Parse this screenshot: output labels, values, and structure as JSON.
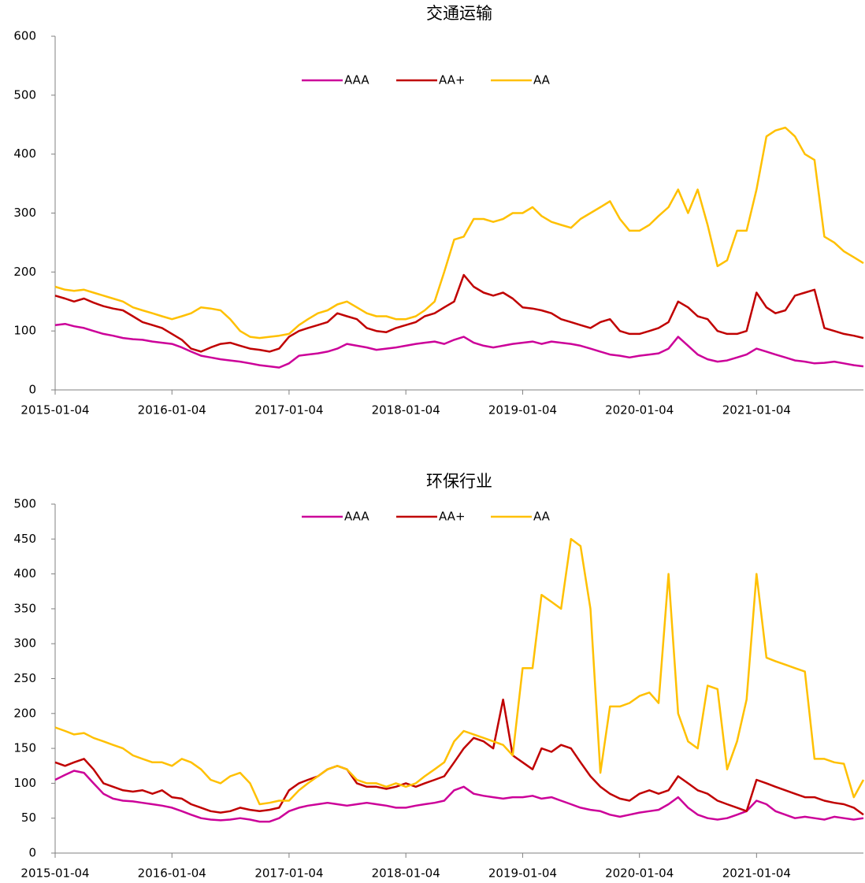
{
  "chart_data": [
    {
      "type": "line",
      "title": "交通运输",
      "x": [
        "2015-01-04",
        "2015-02-04",
        "2015-03-04",
        "2015-04-04",
        "2015-05-04",
        "2015-06-04",
        "2015-07-04",
        "2015-08-04",
        "2015-09-04",
        "2015-10-04",
        "2015-11-04",
        "2015-12-04",
        "2016-01-04",
        "2016-02-04",
        "2016-03-04",
        "2016-04-04",
        "2016-05-04",
        "2016-06-04",
        "2016-07-04",
        "2016-08-04",
        "2016-09-04",
        "2016-10-04",
        "2016-11-04",
        "2016-12-04",
        "2017-01-04",
        "2017-02-04",
        "2017-03-04",
        "2017-04-04",
        "2017-05-04",
        "2017-06-04",
        "2017-07-04",
        "2017-08-04",
        "2017-09-04",
        "2017-10-04",
        "2017-11-04",
        "2017-12-04",
        "2018-01-04",
        "2018-02-04",
        "2018-03-04",
        "2018-04-04",
        "2018-05-04",
        "2018-06-04",
        "2018-07-04",
        "2018-08-04",
        "2018-09-04",
        "2018-10-04",
        "2018-11-04",
        "2018-12-04",
        "2019-01-04",
        "2019-02-04",
        "2019-03-04",
        "2019-04-04",
        "2019-05-04",
        "2019-06-04",
        "2019-07-04",
        "2019-08-04",
        "2019-09-04",
        "2019-10-04",
        "2019-11-04",
        "2019-12-04",
        "2020-01-04",
        "2020-02-04",
        "2020-03-04",
        "2020-04-04",
        "2020-05-04",
        "2020-06-04",
        "2020-07-04",
        "2020-08-04",
        "2020-09-04",
        "2020-10-04",
        "2020-11-04",
        "2020-12-04",
        "2021-01-04",
        "2021-02-04",
        "2021-03-04",
        "2021-04-04",
        "2021-05-04",
        "2021-06-04",
        "2021-07-04",
        "2021-08-04",
        "2021-09-04",
        "2021-10-04",
        "2021-11-04",
        "2021-12-04"
      ],
      "series": [
        {
          "name": "AAA",
          "color": "#cc0099",
          "values": [
            110,
            112,
            108,
            105,
            100,
            95,
            92,
            88,
            86,
            85,
            82,
            80,
            78,
            72,
            65,
            58,
            55,
            52,
            50,
            48,
            45,
            42,
            40,
            38,
            45,
            58,
            60,
            62,
            65,
            70,
            78,
            75,
            72,
            68,
            70,
            72,
            75,
            78,
            80,
            82,
            78,
            85,
            90,
            80,
            75,
            72,
            75,
            78,
            80,
            82,
            78,
            82,
            80,
            78,
            75,
            70,
            65,
            60,
            58,
            55,
            58,
            60,
            62,
            70,
            90,
            75,
            60,
            52,
            48,
            50,
            55,
            60,
            70,
            65,
            60,
            55,
            50,
            48,
            45,
            46,
            48,
            45,
            42,
            40
          ]
        },
        {
          "name": "AA+",
          "color": "#c00000",
          "values": [
            160,
            155,
            150,
            155,
            148,
            142,
            138,
            135,
            125,
            115,
            110,
            105,
            95,
            85,
            70,
            65,
            72,
            78,
            80,
            75,
            70,
            68,
            65,
            70,
            90,
            100,
            105,
            110,
            115,
            130,
            125,
            120,
            105,
            100,
            98,
            105,
            110,
            115,
            125,
            130,
            140,
            150,
            195,
            175,
            165,
            160,
            165,
            155,
            140,
            138,
            135,
            130,
            120,
            115,
            110,
            105,
            115,
            120,
            100,
            95,
            95,
            100,
            105,
            115,
            150,
            140,
            125,
            120,
            100,
            95,
            95,
            100,
            165,
            140,
            130,
            135,
            160,
            165,
            170,
            105,
            100,
            95,
            92,
            88
          ]
        },
        {
          "name": "AA",
          "color": "#ffc000",
          "values": [
            175,
            170,
            168,
            170,
            165,
            160,
            155,
            150,
            140,
            135,
            130,
            125,
            120,
            125,
            130,
            140,
            138,
            135,
            120,
            100,
            90,
            88,
            90,
            92,
            95,
            110,
            120,
            130,
            135,
            145,
            150,
            140,
            130,
            125,
            125,
            120,
            120,
            125,
            135,
            150,
            200,
            255,
            260,
            290,
            290,
            285,
            290,
            300,
            300,
            310,
            295,
            285,
            280,
            275,
            290,
            300,
            310,
            320,
            290,
            270,
            270,
            280,
            295,
            310,
            340,
            300,
            340,
            280,
            210,
            220,
            270,
            270,
            340,
            430,
            440,
            445,
            430,
            400,
            390,
            260,
            250,
            235,
            225,
            215
          ]
        }
      ],
      "xlim": [
        "2015-01-04",
        "2021-12-04"
      ],
      "xticks": [
        "2015-01-04",
        "2016-01-04",
        "2017-01-04",
        "2018-01-04",
        "2019-01-04",
        "2020-01-04",
        "2021-01-04"
      ],
      "ylim": [
        0,
        600
      ],
      "yticks": [
        0,
        100,
        200,
        300,
        400,
        500,
        600
      ],
      "legend": "top"
    },
    {
      "type": "line",
      "title": "环保行业",
      "x": [
        "2015-01-04",
        "2015-02-04",
        "2015-03-04",
        "2015-04-04",
        "2015-05-04",
        "2015-06-04",
        "2015-07-04",
        "2015-08-04",
        "2015-09-04",
        "2015-10-04",
        "2015-11-04",
        "2015-12-04",
        "2016-01-04",
        "2016-02-04",
        "2016-03-04",
        "2016-04-04",
        "2016-05-04",
        "2016-06-04",
        "2016-07-04",
        "2016-08-04",
        "2016-09-04",
        "2016-10-04",
        "2016-11-04",
        "2016-12-04",
        "2017-01-04",
        "2017-02-04",
        "2017-03-04",
        "2017-04-04",
        "2017-05-04",
        "2017-06-04",
        "2017-07-04",
        "2017-08-04",
        "2017-09-04",
        "2017-10-04",
        "2017-11-04",
        "2017-12-04",
        "2018-01-04",
        "2018-02-04",
        "2018-03-04",
        "2018-04-04",
        "2018-05-04",
        "2018-06-04",
        "2018-07-04",
        "2018-08-04",
        "2018-09-04",
        "2018-10-04",
        "2018-11-04",
        "2018-12-04",
        "2019-01-04",
        "2019-02-04",
        "2019-03-04",
        "2019-04-04",
        "2019-05-04",
        "2019-06-04",
        "2019-07-04",
        "2019-08-04",
        "2019-09-04",
        "2019-10-04",
        "2019-11-04",
        "2019-12-04",
        "2020-01-04",
        "2020-02-04",
        "2020-03-04",
        "2020-04-04",
        "2020-05-04",
        "2020-06-04",
        "2020-07-04",
        "2020-08-04",
        "2020-09-04",
        "2020-10-04",
        "2020-11-04",
        "2020-12-04",
        "2021-01-04",
        "2021-02-04",
        "2021-03-04",
        "2021-04-04",
        "2021-05-04",
        "2021-06-04",
        "2021-07-04",
        "2021-08-04",
        "2021-09-04",
        "2021-10-04",
        "2021-11-04",
        "2021-12-04"
      ],
      "series": [
        {
          "name": "AAA",
          "color": "#cc0099",
          "values": [
            105,
            112,
            118,
            115,
            100,
            85,
            78,
            75,
            74,
            72,
            70,
            68,
            65,
            60,
            55,
            50,
            48,
            47,
            48,
            50,
            48,
            45,
            45,
            50,
            60,
            65,
            68,
            70,
            72,
            70,
            68,
            70,
            72,
            70,
            68,
            65,
            65,
            68,
            70,
            72,
            75,
            90,
            95,
            85,
            82,
            80,
            78,
            80,
            80,
            82,
            78,
            80,
            75,
            70,
            65,
            62,
            60,
            55,
            52,
            55,
            58,
            60,
            62,
            70,
            80,
            65,
            55,
            50,
            48,
            50,
            55,
            60,
            75,
            70,
            60,
            55,
            50,
            52,
            50,
            48,
            52,
            50,
            48,
            50
          ]
        },
        {
          "name": "AA+",
          "color": "#c00000",
          "values": [
            130,
            125,
            130,
            135,
            120,
            100,
            95,
            90,
            88,
            90,
            85,
            90,
            80,
            78,
            70,
            65,
            60,
            58,
            60,
            65,
            62,
            60,
            62,
            65,
            90,
            100,
            105,
            110,
            120,
            125,
            120,
            100,
            95,
            95,
            92,
            95,
            100,
            95,
            100,
            105,
            110,
            130,
            150,
            165,
            160,
            150,
            220,
            140,
            130,
            120,
            150,
            145,
            155,
            150,
            130,
            110,
            95,
            85,
            78,
            75,
            85,
            90,
            85,
            90,
            110,
            100,
            90,
            85,
            75,
            70,
            65,
            60,
            105,
            100,
            95,
            90,
            85,
            80,
            80,
            75,
            72,
            70,
            65,
            55
          ]
        },
        {
          "name": "AA",
          "color": "#ffc000",
          "values": [
            180,
            175,
            170,
            172,
            165,
            160,
            155,
            150,
            140,
            135,
            130,
            130,
            125,
            135,
            130,
            120,
            105,
            100,
            110,
            115,
            100,
            70,
            72,
            75,
            75,
            90,
            100,
            110,
            120,
            125,
            120,
            105,
            100,
            100,
            95,
            100,
            95,
            100,
            110,
            120,
            130,
            160,
            175,
            170,
            165,
            160,
            155,
            140,
            265,
            265,
            370,
            360,
            350,
            450,
            440,
            350,
            115,
            210,
            210,
            215,
            225,
            230,
            215,
            400,
            200,
            160,
            150,
            240,
            235,
            120,
            160,
            220,
            400,
            280,
            275,
            270,
            265,
            260,
            135,
            135,
            130,
            128,
            80,
            105
          ]
        }
      ],
      "xlim": [
        "2015-01-04",
        "2021-12-04"
      ],
      "xticks": [
        "2015-01-04",
        "2016-01-04",
        "2017-01-04",
        "2018-01-04",
        "2019-01-04",
        "2020-01-04",
        "2021-01-04"
      ],
      "ylim": [
        0,
        500
      ],
      "yticks": [
        0,
        50,
        100,
        150,
        200,
        250,
        300,
        350,
        400,
        450,
        500
      ],
      "legend": "top"
    }
  ]
}
